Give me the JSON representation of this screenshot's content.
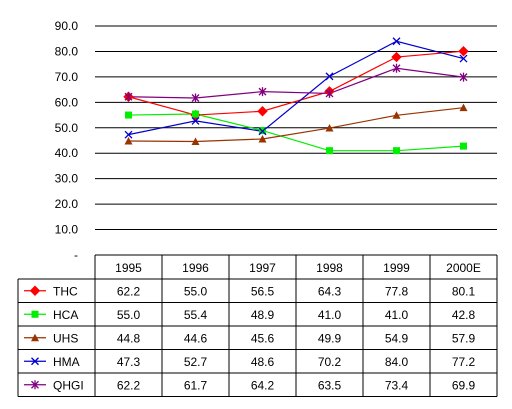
{
  "chart_data": {
    "type": "line",
    "categories": [
      "1995",
      "1996",
      "1997",
      "1998",
      "1999",
      "2000E"
    ],
    "ylim": [
      0,
      90
    ],
    "y_ticks": [
      "-",
      "10.0",
      "20.0",
      "30.0",
      "40.0",
      "50.0",
      "60.0",
      "70.0",
      "80.0",
      "90.0"
    ],
    "grid": true,
    "legend_placement": "data table below plot",
    "series": [
      {
        "name": "THC",
        "values": [
          62.2,
          55.0,
          56.5,
          64.3,
          77.8,
          80.1
        ],
        "labels": [
          "62.2",
          "55.0",
          "56.5",
          "64.3",
          "77.8",
          "80.1"
        ],
        "color": "#ff0000",
        "marker": "diamond"
      },
      {
        "name": "HCA",
        "values": [
          55.0,
          55.4,
          48.9,
          41.0,
          41.0,
          42.8
        ],
        "labels": [
          "55.0",
          "55.4",
          "48.9",
          "41.0",
          "41.0",
          "42.8"
        ],
        "color": "#00ee00",
        "marker": "square"
      },
      {
        "name": "UHS",
        "values": [
          44.8,
          44.6,
          45.6,
          49.9,
          54.9,
          57.9
        ],
        "labels": [
          "44.8",
          "44.6",
          "45.6",
          "49.9",
          "54.9",
          "57.9"
        ],
        "color": "#993300",
        "marker": "triangle"
      },
      {
        "name": "HMA",
        "values": [
          47.3,
          52.7,
          48.6,
          70.2,
          84.0,
          77.2
        ],
        "labels": [
          "47.3",
          "52.7",
          "48.6",
          "70.2",
          "84.0",
          "77.2"
        ],
        "color": "#0000cc",
        "marker": "x"
      },
      {
        "name": "QHGI",
        "values": [
          62.2,
          61.7,
          64.2,
          63.5,
          73.4,
          69.9
        ],
        "labels": [
          "62.2",
          "61.7",
          "64.2",
          "63.5",
          "73.4",
          "69.9"
        ],
        "color": "#800080",
        "marker": "star"
      }
    ]
  }
}
